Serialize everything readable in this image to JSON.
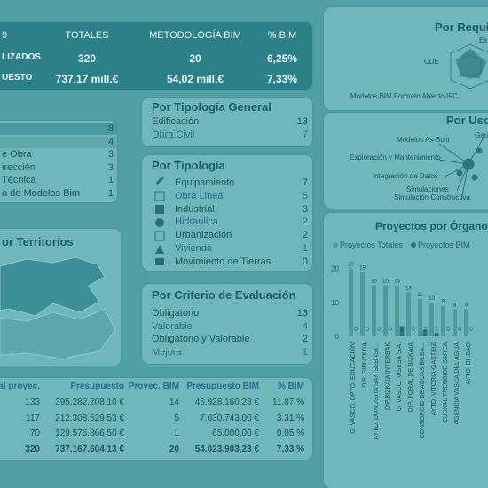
{
  "summary_table": {
    "headers": [
      "9",
      "TOTALES",
      "METODOLOGÍA BIM",
      "% BIM"
    ],
    "rows": [
      [
        "LIZADOS",
        "320",
        "20",
        "6,25%"
      ],
      [
        "UESTO",
        "737,17 mill.€",
        "54,02 mill.€",
        "7,33%"
      ]
    ]
  },
  "left_list": {
    "rows": [
      {
        "value": "8"
      },
      {
        "value": "4"
      },
      {
        "label": "e Obra",
        "value": "3"
      },
      {
        "label": "irección",
        "value": "3"
      },
      {
        "label": "Técnica",
        "value": "1"
      },
      {
        "label": "a de Modelos Bim",
        "value": "1"
      }
    ]
  },
  "tipologia_general": {
    "title": "Por Tipología General",
    "rows": [
      [
        "Edificación",
        "13"
      ],
      [
        "Obra Civil",
        "7"
      ]
    ]
  },
  "tipologia": {
    "title": "Por Tipología",
    "rows": [
      [
        "Equipamiento",
        "7"
      ],
      [
        "Obra Lineal",
        "5"
      ],
      [
        "Industrial",
        "3"
      ],
      [
        "Hidraulica",
        "2"
      ],
      [
        "Urbanización",
        "2"
      ],
      [
        "Vivienda",
        "1"
      ],
      [
        "Movimiento de Tierras",
        "0"
      ]
    ]
  },
  "criterio": {
    "title": "Por Criterio de Evaluación",
    "rows": [
      [
        "Obligatorio",
        "13"
      ],
      [
        "Valorable",
        "4"
      ],
      [
        "Obligatorio y Valorable",
        "2"
      ],
      [
        "Mejora",
        "1"
      ]
    ]
  },
  "territorios": {
    "title": "or Territorios"
  },
  "requisitos": {
    "title": "Por Requi",
    "labels": [
      "Ex",
      "CDE",
      "Modelos BIM Formato Abierto IFC"
    ]
  },
  "usos": {
    "title": "Por Uso",
    "labels": [
      "Geo",
      "Modelos As-Built",
      "Exploración y Mantenimiento",
      "Integración de Datos",
      "Simulaciones",
      "Simulación Constructiva"
    ]
  },
  "bottom_table": {
    "headers": [
      "tal proyec.",
      "Presupuesto",
      "Proyec. BIM",
      "Presupuesto BIM",
      "% BIM"
    ],
    "rows": [
      [
        "133",
        "395.282.208,10 €",
        "14",
        "46.928.160,23 €",
        "11,87 %"
      ],
      [
        "117",
        "212.308.529,53 €",
        "5",
        "7.030.743,00 €",
        "3,31 %"
      ],
      [
        "70",
        "129.576.866,50 €",
        "1",
        "65.000,00 €",
        "0,05 %"
      ],
      [
        "320",
        "737.167.604,13 €",
        "20",
        "54.023.903,23 €",
        "7,33 %"
      ]
    ]
  },
  "chart_data": {
    "type": "bar",
    "title": "Proyectos por Órgano",
    "categories": [
      "G. VASCO. DPTO. EDUCACIÓN",
      "DIP. GIPUZKOA",
      "AYTO. DONOSTIA SAN SEBAST...",
      "DIP.BIZKAIA INTERBAK",
      "G. VASCO. VISESA S.A.",
      "DIP. FORAL DE BIZKAIA",
      "CONSORCIO DE AGUAS BILBA...",
      "AYTO. VITORIA-GASTEIZ",
      "EUSKAL TRENBIDE SAREA",
      "AGENCIA VASCA DEL AGUA",
      "AYTO. BILBAO"
    ],
    "series": [
      {
        "name": "Proyectos Totales",
        "color": "#4f98a0",
        "values": [
          20,
          19,
          15,
          15,
          15,
          13,
          11,
          10,
          9,
          8,
          8
        ]
      },
      {
        "name": "Proyectos BIM",
        "color": "#2f7280",
        "values": [
          0,
          0,
          0,
          0,
          3,
          0,
          2,
          1,
          0,
          0,
          0
        ]
      }
    ],
    "ylim": [
      0,
      22
    ],
    "yticks": [
      0,
      10,
      20
    ],
    "grid": false
  }
}
